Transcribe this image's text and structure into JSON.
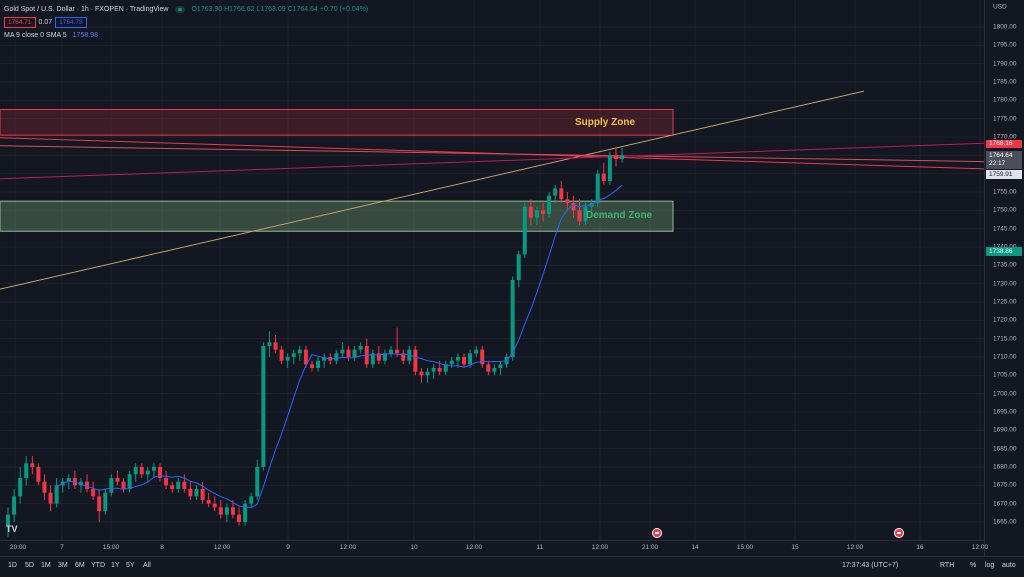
{
  "header": {
    "symbol_title": "Gold Spot / U.S. Dollar · 1h · FXOPEN · TradingView",
    "ohlc": "O1763.90 H1766.62 L1763.09 C1764.64 +0.70 (+0.04%)",
    "bid": "1764.71",
    "spread": "0.07",
    "ask": "1764.78",
    "ma_label": "MA 9 close 0 SMA 5",
    "ma_value": "1758.98"
  },
  "price_axis": {
    "currency": "USD",
    "ticks": [
      "1800.00",
      "1795.00",
      "1790.00",
      "1785.00",
      "1780.00",
      "1775.00",
      "1770.00",
      "1765.00",
      "1760.00",
      "1755.00",
      "1750.00",
      "1745.00",
      "1740.00",
      "1735.00",
      "1730.00",
      "1725.00",
      "1720.00",
      "1715.00",
      "1710.00",
      "1705.00",
      "1700.00",
      "1695.00",
      "1690.00",
      "1685.00",
      "1680.00",
      "1675.00",
      "1670.00",
      "1665.00"
    ],
    "tag_red": "1768.16",
    "tag_last_price": "1764.64",
    "tag_countdown": "22:17",
    "tag_grey": "1759.91",
    "tag_green": "1738.86"
  },
  "time_axis": {
    "labels": [
      "20:00",
      "7",
      "15:00",
      "8",
      "12:00",
      "9",
      "12:00",
      "10",
      "12:00",
      "11",
      "12:00",
      "21:00",
      "14",
      "15:00",
      "15",
      "12:00",
      "16",
      "12:00"
    ]
  },
  "zones": {
    "supply_label": "Supply Zone",
    "demand_label": "Demand Zone"
  },
  "bottom_bar": {
    "timeframes": [
      "1D",
      "5D",
      "1M",
      "3M",
      "6M",
      "YTD",
      "1Y",
      "5Y",
      "All"
    ],
    "clock": "17:37:43 (UTC+7)",
    "session": "RTH",
    "percent": "%",
    "log": "log",
    "auto": "auto"
  },
  "logo_text": "TV",
  "colors": {
    "background": "#131722",
    "up": "#089981",
    "down": "#f23645",
    "ma": "#2962ff",
    "supply_text": "#f5c342",
    "demand_text": "#3cb371",
    "trendline": "#c8a165"
  },
  "chart_data": {
    "type": "candlestick",
    "ylim": [
      1662,
      1807
    ],
    "ma_period": 9,
    "ohlc": [
      [
        1664,
        1669,
        1661,
        1667
      ],
      [
        1667,
        1674,
        1665,
        1672
      ],
      [
        1672,
        1680,
        1670,
        1677
      ],
      [
        1677,
        1683,
        1675,
        1681
      ],
      [
        1681,
        1683,
        1678,
        1680
      ],
      [
        1680,
        1681,
        1675,
        1676
      ],
      [
        1676,
        1678,
        1671,
        1673
      ],
      [
        1673,
        1675,
        1668,
        1670
      ],
      [
        1670,
        1677,
        1669,
        1675
      ],
      [
        1675,
        1677,
        1673,
        1676
      ],
      [
        1676,
        1678,
        1674,
        1677
      ],
      [
        1677,
        1679,
        1674,
        1675
      ],
      [
        1675,
        1677,
        1673,
        1676
      ],
      [
        1676,
        1678,
        1673,
        1674
      ],
      [
        1674,
        1676,
        1671,
        1672
      ],
      [
        1672,
        1674,
        1665,
        1668
      ],
      [
        1668,
        1674,
        1667,
        1673
      ],
      [
        1673,
        1678,
        1672,
        1677
      ],
      [
        1677,
        1679,
        1675,
        1676
      ],
      [
        1676,
        1677,
        1673,
        1674
      ],
      [
        1674,
        1679,
        1673,
        1678
      ],
      [
        1678,
        1681,
        1676,
        1680
      ],
      [
        1680,
        1681,
        1677,
        1678
      ],
      [
        1678,
        1680,
        1676,
        1679
      ],
      [
        1679,
        1681,
        1677,
        1680
      ],
      [
        1680,
        1681,
        1676,
        1677
      ],
      [
        1677,
        1679,
        1674,
        1675
      ],
      [
        1675,
        1676,
        1673,
        1674
      ],
      [
        1674,
        1677,
        1673,
        1676
      ],
      [
        1676,
        1678,
        1673,
        1674
      ],
      [
        1674,
        1676,
        1671,
        1672
      ],
      [
        1672,
        1675,
        1671,
        1674
      ],
      [
        1674,
        1676,
        1670,
        1671
      ],
      [
        1671,
        1673,
        1669,
        1670
      ],
      [
        1670,
        1672,
        1668,
        1669
      ],
      [
        1669,
        1671,
        1666,
        1667
      ],
      [
        1667,
        1670,
        1665,
        1669
      ],
      [
        1669,
        1671,
        1666,
        1667
      ],
      [
        1667,
        1669,
        1664,
        1665
      ],
      [
        1665,
        1671,
        1664,
        1670
      ],
      [
        1670,
        1673,
        1669,
        1672
      ],
      [
        1672,
        1682,
        1671,
        1680
      ],
      [
        1680,
        1714,
        1679,
        1713
      ],
      [
        1713,
        1717,
        1710,
        1714
      ],
      [
        1714,
        1716,
        1711,
        1712
      ],
      [
        1712,
        1713,
        1708,
        1709
      ],
      [
        1709,
        1711,
        1707,
        1710
      ],
      [
        1710,
        1712,
        1708,
        1711
      ],
      [
        1711,
        1713,
        1709,
        1712
      ],
      [
        1712,
        1713,
        1707,
        1708
      ],
      [
        1708,
        1709,
        1706,
        1707
      ],
      [
        1707,
        1710,
        1706,
        1709
      ],
      [
        1709,
        1711,
        1707,
        1710
      ],
      [
        1710,
        1711,
        1708,
        1709
      ],
      [
        1709,
        1712,
        1708,
        1711
      ],
      [
        1711,
        1714,
        1710,
        1712
      ],
      [
        1712,
        1713,
        1709,
        1710
      ],
      [
        1710,
        1713,
        1709,
        1712
      ],
      [
        1712,
        1714,
        1711,
        1713
      ],
      [
        1713,
        1715,
        1707,
        1708
      ],
      [
        1708,
        1712,
        1707,
        1711
      ],
      [
        1711,
        1713,
        1708,
        1709
      ],
      [
        1709,
        1712,
        1708,
        1711
      ],
      [
        1711,
        1713,
        1710,
        1712
      ],
      [
        1712,
        1718,
        1710,
        1711
      ],
      [
        1711,
        1712,
        1708,
        1709
      ],
      [
        1709,
        1713,
        1708,
        1712
      ],
      [
        1712,
        1713,
        1705,
        1706
      ],
      [
        1706,
        1707,
        1703,
        1705
      ],
      [
        1705,
        1707,
        1703,
        1706
      ],
      [
        1706,
        1708,
        1704,
        1707
      ],
      [
        1707,
        1709,
        1705,
        1706
      ],
      [
        1706,
        1709,
        1705,
        1708
      ],
      [
        1708,
        1710,
        1707,
        1709
      ],
      [
        1709,
        1711,
        1707,
        1710
      ],
      [
        1710,
        1711,
        1707,
        1708
      ],
      [
        1708,
        1712,
        1707,
        1711
      ],
      [
        1711,
        1713,
        1710,
        1712
      ],
      [
        1712,
        1713,
        1707,
        1708
      ],
      [
        1708,
        1709,
        1705,
        1706
      ],
      [
        1706,
        1708,
        1705,
        1707
      ],
      [
        1707,
        1709,
        1705,
        1708
      ],
      [
        1708,
        1711,
        1707,
        1710
      ],
      [
        1710,
        1732,
        1709,
        1731
      ],
      [
        1731,
        1739,
        1729,
        1738
      ],
      [
        1738,
        1752,
        1737,
        1751
      ],
      [
        1751,
        1753,
        1746,
        1748
      ],
      [
        1748,
        1751,
        1746,
        1750
      ],
      [
        1750,
        1752,
        1747,
        1749
      ],
      [
        1749,
        1755,
        1748,
        1754
      ],
      [
        1754,
        1757,
        1752,
        1756
      ],
      [
        1756,
        1758,
        1752,
        1753
      ],
      [
        1753,
        1755,
        1750,
        1752
      ],
      [
        1752,
        1754,
        1748,
        1750
      ],
      [
        1750,
        1753,
        1746,
        1747
      ],
      [
        1747,
        1752,
        1746,
        1751
      ],
      [
        1751,
        1753,
        1749,
        1752
      ],
      [
        1752,
        1761,
        1751,
        1760
      ],
      [
        1760,
        1763,
        1757,
        1758
      ],
      [
        1758,
        1766,
        1757,
        1765
      ],
      [
        1765,
        1767,
        1762,
        1764
      ],
      [
        1764,
        1767,
        1763,
        1765
      ]
    ]
  }
}
